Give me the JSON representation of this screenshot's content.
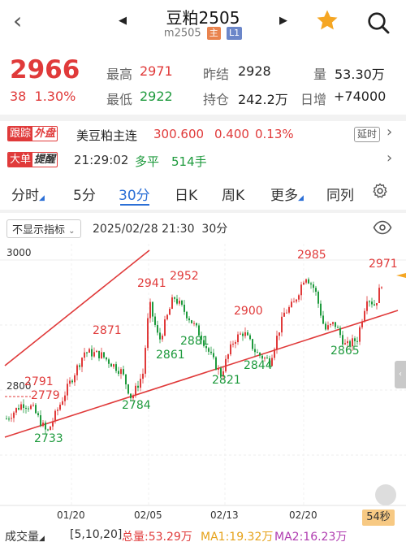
{
  "header": {
    "title": "豆粕2505",
    "code": "m2505",
    "tag_main": "主",
    "tag_level": "L1",
    "back_icon": "chevron-left-icon",
    "prev_icon": "triangle-left-icon",
    "next_icon": "triangle-right-icon",
    "star_icon": "star-icon",
    "star_color": "#f5a623",
    "search_icon": "search-icon"
  },
  "quote": {
    "price": "2966",
    "change": "38",
    "change_pct": "1.30%",
    "high_label": "最高",
    "high": "2971",
    "low_label": "最低",
    "low": "2922",
    "prev_label": "昨结",
    "prev": "2928",
    "oi_label": "持仓",
    "oi": "242.2万",
    "vol_label": "量",
    "vol": "53.30万",
    "daily_label": "日增",
    "daily": "+74000",
    "up_color": "#e03a3a",
    "down_color": "#1e9a3d"
  },
  "follow": {
    "badge_a": "跟踪",
    "badge_b": "外盘",
    "name": "美豆粕主连",
    "price": "300.600",
    "chg": "0.400",
    "pct": "0.13%",
    "extra_btn": "延时"
  },
  "bigorder": {
    "badge_a": "大单",
    "badge_b": "提醒",
    "time": "21:29:02",
    "type": "多平",
    "qty": "514手"
  },
  "tabs": [
    {
      "label": "分时"
    },
    {
      "label": "5分"
    },
    {
      "label": "30分"
    },
    {
      "label": "日K"
    },
    {
      "label": "周K"
    },
    {
      "label": "更多"
    },
    {
      "label": "同列"
    }
  ],
  "settings_icon": "gear-icon",
  "chart_header": {
    "indicator_btn": "不显示指标",
    "datetime": "2025/02/28 21:30",
    "period": "30分",
    "eye_icon": "eye-icon"
  },
  "chart_data": {
    "type": "candlestick",
    "y_ticks": [
      "3000",
      "2800"
    ],
    "x_ticks": [
      "01/20",
      "02/05",
      "02/13",
      "02/20"
    ],
    "annotations_red": [
      "2791",
      "2779",
      "2871",
      "2941",
      "2952",
      "2900",
      "2985",
      "2971"
    ],
    "annotations_green": [
      "2733",
      "2784",
      "2861",
      "2881",
      "2821",
      "2844",
      "2865"
    ],
    "last": 2966,
    "up_color": "#e03a3a",
    "down_color": "#1e9a3d"
  },
  "countdown": "54秒",
  "bottom": {
    "indicator": "成交量",
    "params": "[5,10,20]",
    "total_label": "总量:53.29万",
    "ma1": "MA1:19.32万",
    "ma2": "MA2:16.23万"
  }
}
